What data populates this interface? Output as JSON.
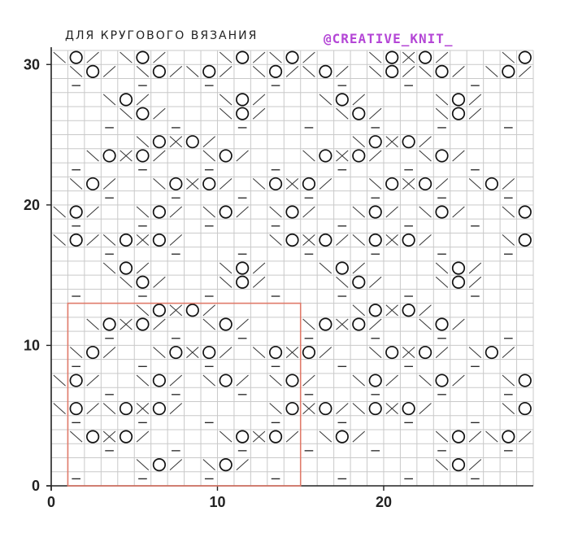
{
  "header": {
    "title": "ДЛЯ КРУГОВОГО ВЯЗАНИЯ",
    "handle": "@CREATIVE_KNIT_",
    "handle_color": "#b446d6"
  },
  "chart_data": {
    "type": "knitting-chart",
    "columns": 29,
    "rows": 31,
    "x_ticks": [
      "0",
      "10",
      "20"
    ],
    "y_ticks": [
      "0",
      "10",
      "20",
      "30"
    ],
    "repeat_box": {
      "col_from": 1,
      "col_to": 15,
      "row_from": 1,
      "row_to": 13,
      "color": "#e07a6a"
    },
    "legend_symbols": {
      "O": "yarn-over",
      "-": "purl",
      "\\": "k2tog-left",
      "/": "k2tog-right",
      "^": "central-double-decrease"
    },
    "rows_data": [
      {
        "row": 1,
        "cells": [
          1,
          "-",
          5,
          "-",
          9,
          "-",
          13,
          "-",
          17,
          "-",
          21,
          "-",
          25,
          "-"
        ]
      },
      {
        "row": 2,
        "cells": [
          6,
          "O",
          10,
          "O",
          24,
          "O"
        ]
      },
      {
        "row": 3,
        "cells": [
          3,
          "-",
          7,
          "-",
          11,
          "-",
          15,
          "-",
          19,
          "-",
          23,
          "-",
          27,
          "-"
        ]
      },
      {
        "row": 4,
        "cells": [
          2,
          "O",
          4,
          "O",
          11,
          "O",
          13,
          "O",
          17,
          "O",
          24,
          "O",
          27,
          "O"
        ]
      },
      {
        "row": 5,
        "cells": [
          1,
          "-",
          5,
          "-",
          9,
          "-",
          13,
          "-",
          17,
          "-",
          21,
          "-",
          25,
          "-"
        ]
      },
      {
        "row": 6,
        "cells": [
          1,
          "O",
          4,
          "O",
          6,
          "O",
          14,
          "O",
          16,
          "O",
          19,
          "O",
          21,
          "O",
          28,
          "O"
        ]
      },
      {
        "row": 7,
        "cells": [
          3,
          "-",
          7,
          "-",
          11,
          "-",
          15,
          "-",
          19,
          "-",
          23,
          "-",
          27,
          "-"
        ]
      },
      {
        "row": 8,
        "cells": [
          1,
          "O",
          6,
          "O",
          10,
          "O",
          14,
          "O",
          19,
          "O",
          23,
          "O",
          28,
          "O"
        ]
      },
      {
        "row": 9,
        "cells": [
          1,
          "-",
          5,
          "-",
          9,
          "-",
          13,
          "-",
          17,
          "-",
          21,
          "-",
          25,
          "-"
        ]
      },
      {
        "row": 10,
        "cells": [
          2,
          "O",
          7,
          "O",
          9,
          "O",
          13,
          "O",
          15,
          "O",
          20,
          "O",
          22,
          "O",
          26,
          "O"
        ]
      },
      {
        "row": 11,
        "cells": [
          3,
          "-",
          7,
          "-",
          11,
          "-",
          15,
          "-",
          19,
          "-",
          23,
          "-",
          27,
          "-"
        ]
      },
      {
        "row": 12,
        "cells": [
          3,
          "O",
          5,
          "O",
          10,
          "O",
          16,
          "O",
          18,
          "O",
          23,
          "O"
        ]
      },
      {
        "row": 13,
        "cells": [
          6,
          "O",
          8,
          "O",
          19,
          "O",
          21,
          "O"
        ]
      },
      {
        "row": 14,
        "cells": [
          1,
          "-",
          5,
          "-",
          9,
          "-",
          13,
          "-",
          17,
          "-",
          21,
          "-",
          25,
          "-"
        ]
      },
      {
        "row": 15,
        "cells": [
          5,
          "O",
          11,
          "O",
          18,
          "O",
          24,
          "O"
        ]
      },
      {
        "row": 16,
        "cells": [
          4,
          "O",
          11,
          "O",
          17,
          "O",
          24,
          "O"
        ]
      },
      {
        "row": 17,
        "cells": [
          3,
          "-",
          7,
          "-",
          11,
          "-",
          15,
          "-",
          19,
          "-",
          23,
          "-",
          27,
          "-"
        ]
      },
      {
        "row": 18,
        "cells": [
          1,
          "O",
          4,
          "O",
          6,
          "O",
          14,
          "O",
          16,
          "O",
          19,
          "O",
          21,
          "O",
          28,
          "O"
        ]
      },
      {
        "row": 19,
        "cells": [
          1,
          "-",
          5,
          "-",
          9,
          "-",
          13,
          "-",
          17,
          "-",
          21,
          "-",
          25,
          "-"
        ]
      },
      {
        "row": 20,
        "cells": [
          1,
          "O",
          6,
          "O",
          10,
          "O",
          14,
          "O",
          19,
          "O",
          23,
          "O",
          28,
          "O"
        ]
      },
      {
        "row": 21,
        "cells": [
          3,
          "-",
          7,
          "-",
          11,
          "-",
          15,
          "-",
          19,
          "-",
          23,
          "-",
          27,
          "-"
        ]
      },
      {
        "row": 22,
        "cells": [
          2,
          "O",
          7,
          "O",
          9,
          "O",
          13,
          "O",
          15,
          "O",
          20,
          "O",
          22,
          "O",
          26,
          "O"
        ]
      },
      {
        "row": 23,
        "cells": [
          1,
          "-",
          5,
          "-",
          9,
          "-",
          13,
          "-",
          17,
          "-",
          21,
          "-",
          25,
          "-"
        ]
      },
      {
        "row": 24,
        "cells": [
          3,
          "O",
          5,
          "O",
          10,
          "O",
          16,
          "O",
          18,
          "O",
          23,
          "O"
        ]
      },
      {
        "row": 25,
        "cells": [
          6,
          "O",
          8,
          "O",
          19,
          "O",
          21,
          "O"
        ]
      },
      {
        "row": 26,
        "cells": [
          3,
          "-",
          7,
          "-",
          11,
          "-",
          15,
          "-",
          19,
          "-",
          23,
          "-",
          27,
          "-"
        ]
      },
      {
        "row": 27,
        "cells": [
          5,
          "O",
          11,
          "O",
          18,
          "O",
          24,
          "O"
        ]
      },
      {
        "row": 28,
        "cells": [
          4,
          "O",
          11,
          "O",
          17,
          "O",
          24,
          "O"
        ]
      },
      {
        "row": 29,
        "cells": [
          1,
          "-",
          5,
          "-",
          9,
          "-",
          13,
          "-",
          17,
          "-",
          21,
          "-",
          25,
          "-"
        ]
      },
      {
        "row": 30,
        "cells": [
          2,
          "O",
          6,
          "O",
          9,
          "O",
          13,
          "O",
          16,
          "O",
          20,
          "O",
          23,
          "O",
          27,
          "O"
        ]
      },
      {
        "row": 31,
        "cells": [
          1,
          "O",
          5,
          "O",
          11,
          "O",
          14,
          "O",
          20,
          "O",
          22,
          "O",
          28,
          "O"
        ]
      }
    ]
  }
}
